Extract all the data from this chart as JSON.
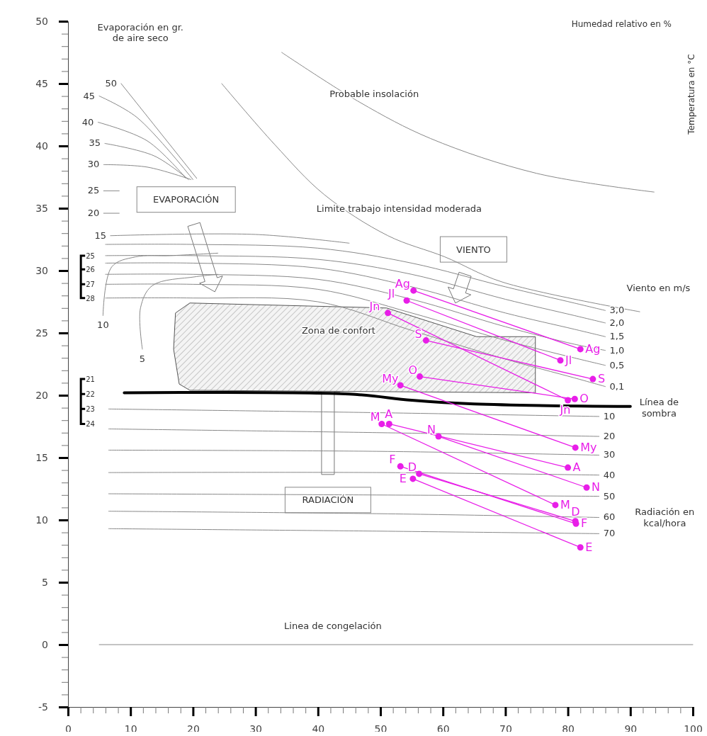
{
  "chart_data": {
    "type": "line",
    "xlabel": "Humedad relativo en %",
    "ylabel": "Temperatura en °C",
    "xlim": [
      0,
      100
    ],
    "ylim": [
      -5,
      50
    ],
    "marker": "none",
    "xticks": [
      0,
      {
        "value": 2,
        "label": null
      },
      {
        "value": 4,
        "label": null
      },
      {
        "value": 6,
        "label": null
      },
      {
        "value": 8,
        "label": null
      },
      10,
      {
        "value": 12,
        "label": null
      },
      {
        "value": 14,
        "label": null
      },
      {
        "value": 16,
        "label": null
      },
      {
        "value": 18,
        "label": null
      },
      20,
      {
        "value": 22,
        "label": null
      },
      {
        "value": 24,
        "label": null
      },
      {
        "value": 26,
        "label": null
      },
      {
        "value": 28,
        "label": null
      },
      30,
      {
        "value": 32,
        "label": null
      },
      {
        "value": 34,
        "label": null
      },
      {
        "value": 36,
        "label": null
      },
      {
        "value": 38,
        "label": null
      },
      40,
      {
        "value": 42,
        "label": null
      },
      {
        "value": 44,
        "label": null
      },
      {
        "value": 46,
        "label": null
      },
      {
        "value": 48,
        "label": null
      },
      50,
      {
        "value": 52,
        "label": null
      },
      {
        "value": 54,
        "label": null
      },
      {
        "value": 56,
        "label": null
      },
      {
        "value": 58,
        "label": null
      },
      60,
      {
        "value": 62,
        "label": null
      },
      {
        "value": 64,
        "label": null
      },
      {
        "value": 66,
        "label": null
      },
      {
        "value": 68,
        "label": null
      },
      70,
      {
        "value": 72,
        "label": null
      },
      {
        "value": 74,
        "label": null
      },
      {
        "value": 76,
        "label": null
      },
      {
        "value": 78,
        "label": null
      },
      80,
      {
        "value": 82,
        "label": null
      },
      {
        "value": 84,
        "label": null
      },
      {
        "value": 86,
        "label": null
      },
      {
        "value": 88,
        "label": null
      },
      90,
      {
        "value": 92,
        "label": null
      },
      {
        "value": 94,
        "label": null
      },
      {
        "value": 96,
        "label": null
      },
      {
        "value": 98,
        "label": null
      },
      100
    ],
    "yticks": [
      -5,
      {
        "value": -4,
        "label": null
      },
      {
        "value": -3,
        "label": null
      },
      {
        "value": -2,
        "label": null
      },
      {
        "value": -1,
        "label": null
      },
      0,
      {
        "value": 1,
        "label": null
      },
      {
        "value": 2,
        "label": null
      },
      {
        "value": 3,
        "label": null
      },
      {
        "value": 4,
        "label": null
      },
      5,
      {
        "value": 6,
        "label": null
      },
      {
        "value": 7,
        "label": null
      },
      {
        "value": 8,
        "label": null
      },
      {
        "value": 9,
        "label": null
      },
      10,
      {
        "value": 11,
        "label": null
      },
      {
        "value": 12,
        "label": null
      },
      {
        "value": 13,
        "label": null
      },
      {
        "value": 14,
        "label": null
      },
      15,
      {
        "value": 16,
        "label": null
      },
      {
        "value": 17,
        "label": null
      },
      {
        "value": 18,
        "label": null
      },
      {
        "value": 19,
        "label": null
      },
      20,
      {
        "value": 21,
        "label": null
      },
      {
        "value": 22,
        "label": null
      },
      {
        "value": 23,
        "label": null
      },
      {
        "value": 24,
        "label": null
      },
      25,
      {
        "value": 26,
        "label": null
      },
      {
        "value": 27,
        "label": null
      },
      {
        "value": 28,
        "label": null
      },
      {
        "value": 29,
        "label": null
      },
      30,
      {
        "value": 31,
        "label": null
      },
      {
        "value": 32,
        "label": null
      },
      {
        "value": 33,
        "label": null
      },
      {
        "value": 34,
        "label": null
      },
      35,
      {
        "value": 36,
        "label": null
      },
      {
        "value": 37,
        "label": null
      },
      {
        "value": 38,
        "label": null
      },
      {
        "value": 39,
        "label": null
      },
      40,
      {
        "value": 41,
        "label": null
      },
      {
        "value": 42,
        "label": null
      },
      {
        "value": 43,
        "label": null
      },
      {
        "value": 44,
        "label": null
      },
      45,
      {
        "value": 46,
        "label": null
      },
      {
        "value": 47,
        "label": null
      },
      {
        "value": 48,
        "label": null
      },
      {
        "value": 49,
        "label": null
      },
      50
    ],
    "series": [
      {
        "type": "area",
        "color": "#555555",
        "x": [
          19.5,
          51,
          65.4,
          74.8,
          74.8,
          19.5,
          17.8,
          16.9,
          17.2,
          19.5
        ],
        "values": [
          27.4,
          27.0,
          24.7,
          24.7,
          20.2,
          20.4,
          20.9,
          23.7,
          26.6,
          27.4
        ]
      },
      {
        "color": "#888888",
        "x": [
          24.6,
          33.1,
          41,
          51.2,
          60.3,
          69.4,
          91.5
        ],
        "values": [
          45,
          40.1,
          36.1,
          32.8,
          31.1,
          29.1,
          26.7
        ]
      },
      {
        "color": "#888888",
        "x": [
          34.2,
          46.7,
          58,
          75,
          93.8
        ],
        "values": [
          47.5,
          43.5,
          40.6,
          37.8,
          36.3
        ]
      },
      {
        "color": "#888888",
        "x": [
          5,
          100
        ],
        "values": [
          0,
          0
        ]
      },
      {
        "color": "#000000",
        "x": [
          9,
          45,
          55,
          65,
          90
        ],
        "values": [
          20.2,
          20.1,
          19.6,
          19.3,
          19.1
        ]
      },
      {
        "name": "50",
        "color": "#888888",
        "x": [
          8.5,
          20.6
        ],
        "values": [
          45,
          37.4
        ]
      },
      {
        "name": "45",
        "color": "#888888",
        "x": [
          5,
          11,
          20
        ],
        "values": [
          44,
          42.3,
          37.3
        ]
      },
      {
        "name": "40",
        "color": "#888888",
        "x": [
          4.8,
          12.7,
          18.9
        ],
        "values": [
          41.9,
          40.4,
          37.4
        ]
      },
      {
        "name": "35",
        "color": "#888888",
        "x": [
          5.9,
          13.8,
          19.3
        ],
        "values": [
          40.2,
          39.2,
          37.3
        ]
      },
      {
        "name": "30",
        "color": "#888888",
        "x": [
          5.7,
          12.7,
          19.7
        ],
        "values": [
          38.5,
          38.3,
          37.3
        ]
      },
      {
        "name": "25",
        "color": "#888888",
        "x": [
          5.7,
          8.2
        ],
        "values": [
          36.4,
          36.4
        ]
      },
      {
        "name": "20",
        "color": "#888888",
        "x": [
          5.7,
          8.2
        ],
        "values": [
          34.6,
          34.6
        ]
      },
      {
        "name": "15",
        "color": "#888888",
        "x": [
          6.8,
          30,
          45
        ],
        "values": [
          32.8,
          32.9,
          32.2
        ]
      },
      {
        "name": "10",
        "color": "#888888",
        "x": [
          5.6,
          7.0,
          10.8,
          16.4,
          24
        ],
        "values": [
          26.4,
          30.3,
          31.1,
          31.2,
          31.4
        ]
      },
      {
        "name": "5",
        "color": "#888888",
        "x": [
          11.9,
          11.6,
          13.5,
          20.3,
          24
        ],
        "values": [
          23.7,
          27.0,
          28.8,
          29.5,
          29.7
        ]
      },
      {
        "name": "3,0",
        "color": "#888888",
        "x": [
          86,
          81,
          70,
          55,
          40,
          20,
          6
        ],
        "values": [
          26.8,
          27.4,
          28.7,
          30.6,
          31.8,
          32.1,
          32.1
        ]
      },
      {
        "name": "2,0",
        "color": "#888888",
        "x": [
          86,
          81,
          70,
          55,
          40,
          20,
          6
        ],
        "values": [
          25.8,
          26.4,
          27.7,
          29.7,
          30.9,
          31.2,
          31.2
        ]
      },
      {
        "name": "1,5",
        "color": "#888888",
        "x": [
          86,
          81,
          70,
          55,
          40,
          20,
          6
        ],
        "values": [
          24.7,
          25.3,
          26.6,
          28.7,
          30.2,
          30.6,
          30.6
        ]
      },
      {
        "name": "1,0",
        "color": "#888888",
        "x": [
          86,
          81,
          70,
          55,
          40,
          20,
          6
        ],
        "values": [
          23.6,
          24.1,
          25.5,
          27.7,
          29.3,
          29.7,
          29.7
        ]
      },
      {
        "name": "0,5",
        "color": "#888888",
        "x": [
          86,
          81,
          70,
          55,
          40,
          20,
          6
        ],
        "values": [
          22.4,
          23.0,
          24.4,
          26.6,
          28.5,
          28.9,
          28.9
        ]
      },
      {
        "name": "0,1",
        "color": "#888888",
        "x": [
          86,
          81,
          70,
          55,
          40,
          20,
          6
        ],
        "values": [
          20.7,
          21.4,
          22.9,
          25.2,
          27.5,
          27.8,
          27.8
        ]
      },
      {
        "name": "10",
        "color": "#888888",
        "x": [
          85,
          50,
          6.5
        ],
        "values": [
          18.3,
          18.6,
          18.9
        ]
      },
      {
        "name": "20",
        "color": "#888888",
        "x": [
          85,
          50,
          6.5
        ],
        "values": [
          16.7,
          17.0,
          17.3
        ]
      },
      {
        "name": "30",
        "color": "#888888",
        "x": [
          85,
          50,
          6.5
        ],
        "values": [
          15.2,
          15.5,
          15.6
        ]
      },
      {
        "name": "40",
        "color": "#888888",
        "x": [
          85,
          50,
          6.5
        ],
        "values": [
          13.6,
          13.8,
          13.8
        ]
      },
      {
        "name": "50",
        "color": "#888888",
        "x": [
          85,
          50,
          6.5
        ],
        "values": [
          11.9,
          12.0,
          12.1
        ]
      },
      {
        "name": "60",
        "color": "#888888",
        "x": [
          85,
          50,
          6.5
        ],
        "values": [
          10.2,
          10.5,
          10.7
        ]
      },
      {
        "name": "70",
        "color": "#888888",
        "x": [
          85,
          50,
          6.5
        ],
        "values": [
          8.9,
          9.1,
          9.3
        ]
      },
      {
        "name": "E",
        "color": "#e81ee8",
        "marker": "circle",
        "x": [
          55.2,
          82.0
        ],
        "values": [
          13.3,
          7.8
        ]
      },
      {
        "name": "F",
        "color": "#e81ee8",
        "marker": "circle",
        "x": [
          53.2,
          81.3
        ],
        "values": [
          14.3,
          9.7
        ]
      },
      {
        "name": "M",
        "color": "#e81ee8",
        "marker": "circle",
        "x": [
          50.2,
          78.0
        ],
        "values": [
          17.7,
          11.2
        ]
      },
      {
        "name": "A",
        "color": "#e81ee8",
        "marker": "circle",
        "x": [
          51.4,
          80.0
        ],
        "values": [
          17.7,
          14.2
        ]
      },
      {
        "name": "My",
        "color": "#e81ee8",
        "marker": "circle",
        "x": [
          53.2,
          81.2
        ],
        "values": [
          20.8,
          15.8
        ]
      },
      {
        "name": "Jn",
        "color": "#e81ee8",
        "marker": "circle",
        "x": [
          51.2,
          80.0
        ],
        "values": [
          26.6,
          19.6
        ]
      },
      {
        "name": "Jl",
        "color": "#e81ee8",
        "marker": "circle",
        "x": [
          54.2,
          78.8
        ],
        "values": [
          27.6,
          22.8
        ]
      },
      {
        "name": "Ag",
        "color": "#e81ee8",
        "marker": "circle",
        "x": [
          55.3,
          82.0
        ],
        "values": [
          28.4,
          23.7
        ]
      },
      {
        "name": "S",
        "color": "#e81ee8",
        "marker": "circle",
        "x": [
          57.3,
          84.0
        ],
        "values": [
          24.4,
          21.3
        ]
      },
      {
        "name": "O",
        "color": "#e81ee8",
        "marker": "circle",
        "x": [
          56.3,
          81.1
        ],
        "values": [
          21.5,
          19.7
        ]
      },
      {
        "name": "N",
        "color": "#e81ee8",
        "marker": "circle",
        "x": [
          59.3,
          83.0
        ],
        "values": [
          16.7,
          12.6
        ]
      },
      {
        "name": "D",
        "color": "#e81ee8",
        "marker": "circle",
        "x": [
          56.2,
          81.2
        ],
        "values": [
          13.7,
          9.9
        ]
      }
    ],
    "annotations": [
      "Evaporación en gr.\nde aire seco",
      "Probable insolación",
      "Limite trabajo intensidad moderada",
      "EVAPORACIÓN",
      "VIENTO",
      "RADIACIÓN",
      "Zona de confort",
      "Viento en m/s",
      "Línea de\nsombra",
      "Radiación en\nkcal/hora",
      "Linea de congelación",
      "25",
      "26",
      "27",
      "28",
      "21",
      "22",
      "23",
      "24"
    ]
  }
}
